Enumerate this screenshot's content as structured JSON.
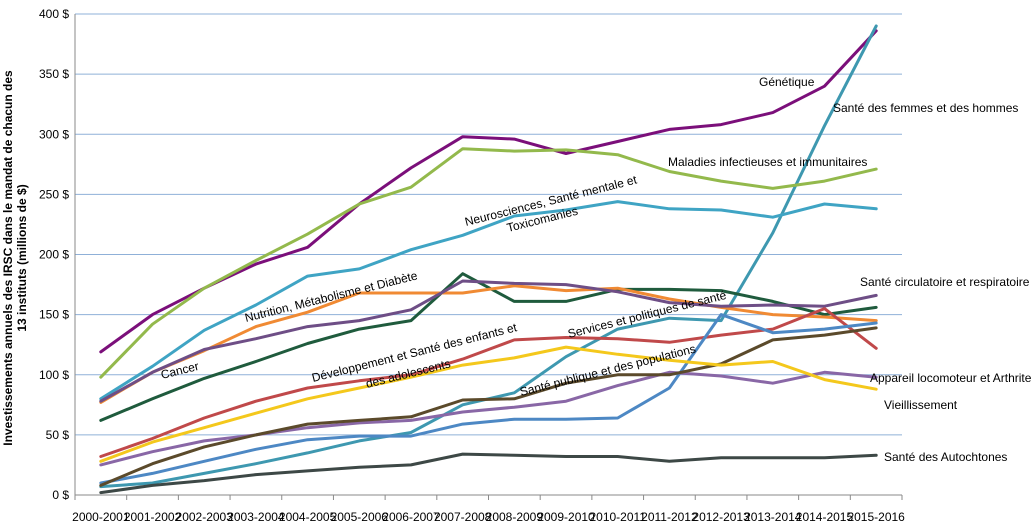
{
  "chart_data": {
    "type": "line",
    "title": "",
    "ylabel": [
      "Investissements annuels des IRSC dans le mandat de chacun des",
      "13 instituts (millions de $)"
    ],
    "xlabel": "",
    "ylim": [
      0,
      400
    ],
    "y_ticks": [
      "0 $",
      "50 $",
      "100 $",
      "150 $",
      "200 $",
      "250 $",
      "300 $",
      "350 $",
      "400 $"
    ],
    "grid": "horizontal",
    "legend": "inline labels",
    "categories": [
      "2000-2001",
      "2001-2002",
      "2002-2003",
      "2003-2004",
      "2004-2005",
      "2005-2006",
      "2006-2007",
      "2007-2008",
      "2008-2009",
      "2009-2010",
      "2010-2011",
      "2011-2012",
      "2012-2013",
      "2013-2014",
      "2014-2015",
      "2015-2016"
    ],
    "series": [
      {
        "name": "Génétique",
        "color": "#7b0f7a",
        "values": [
          119,
          150,
          172,
          192,
          206,
          242,
          272,
          298,
          296,
          284,
          294,
          304,
          308,
          318,
          340,
          386
        ]
      },
      {
        "name": "Santé des femmes et des hommes",
        "color": "#3e98b0",
        "values": [
          7,
          10,
          18,
          26,
          35,
          45,
          52,
          75,
          85,
          115,
          138,
          147,
          145,
          218,
          307,
          390
        ]
      },
      {
        "name": "Maladies infectieuses et immunitaires",
        "color": "#93b94c",
        "values": [
          98,
          142,
          172,
          195,
          217,
          242,
          256,
          288,
          286,
          287,
          283,
          269,
          261,
          255,
          261,
          271
        ]
      },
      {
        "name": "Neurosciences, Santé mentale et Toxicomanies",
        "color": "#3fa4c4",
        "values": [
          80,
          107,
          137,
          158,
          182,
          188,
          204,
          216,
          232,
          237,
          244,
          238,
          237,
          231,
          242,
          238
        ]
      },
      {
        "name": "Santé circulatoire et respiratoire",
        "color": "#1f5b3d",
        "values": [
          62,
          80,
          97,
          111,
          126,
          138,
          145,
          184,
          161,
          161,
          171,
          171,
          170,
          161,
          150,
          156
        ]
      },
      {
        "name": "Nutrition, Métabolisme et Diabète",
        "color": "#f08a33",
        "values": [
          77,
          102,
          120,
          140,
          152,
          168,
          168,
          168,
          174,
          170,
          172,
          163,
          156,
          150,
          148,
          145
        ]
      },
      {
        "name": "Cancer",
        "color": "#6e4e86",
        "values": [
          78,
          102,
          121,
          130,
          140,
          145,
          154,
          178,
          176,
          175,
          169,
          160,
          157,
          158,
          157,
          166
        ]
      },
      {
        "name": "Développement et Santé des enfants et des adolescents",
        "color": "#c0494a",
        "values": [
          32,
          47,
          64,
          78,
          89,
          95,
          100,
          113,
          129,
          131,
          130,
          127,
          133,
          138,
          155,
          122
        ]
      },
      {
        "name": "Services et politiques de santé",
        "color": "#4d88c4",
        "values": [
          10,
          18,
          28,
          38,
          46,
          49,
          49,
          59,
          63,
          63,
          64,
          89,
          150,
          135,
          138,
          143
        ]
      },
      {
        "name": "Appareil locomoteur et Arthrite",
        "color": "#8967a6",
        "values": [
          25,
          36,
          45,
          50,
          56,
          60,
          62,
          69,
          73,
          78,
          91,
          102,
          99,
          93,
          102,
          98
        ]
      },
      {
        "name": "Santé publique et des populations",
        "color": "#5b4a2b",
        "values": [
          8,
          26,
          40,
          50,
          59,
          62,
          65,
          79,
          80,
          93,
          100,
          100,
          109,
          129,
          133,
          139
        ]
      },
      {
        "name": "Vieillissement",
        "color": "#f4c81c",
        "values": [
          28,
          44,
          56,
          68,
          80,
          89,
          98,
          108,
          114,
          123,
          117,
          112,
          108,
          111,
          96,
          88
        ]
      },
      {
        "name": "Santé des Autochtones",
        "color": "#3d4846",
        "values": [
          2,
          8,
          12,
          17,
          20,
          23,
          25,
          34,
          33,
          32,
          32,
          28,
          31,
          31,
          31,
          33
        ]
      }
    ]
  },
  "labels": {
    "genetique": "Génétique",
    "femmes_hommes": "Santé des femmes et des hommes",
    "maladies": "Maladies infectieuses et immunitaires",
    "neuro_1": "Neurosciences, Santé mentale et",
    "neuro_2": "Toxicomanies",
    "nutrition": "Nutrition, Métabolisme et Diabète",
    "cancer": "Cancer",
    "circulatoire": "Santé circulatoire et respiratoire",
    "services": "Services et politiques de santé",
    "developpement_1": "Développement et Santé des enfants et",
    "developpement_2": "des adolescents",
    "sante_publique": "Santé publique et des populations",
    "appareil": "Appareil locomoteur et Arthrite",
    "vieillissement": "Vieillissement",
    "autochtones": "Santé des Autochtones"
  },
  "label_colors": {
    "appareil": "#e8262b",
    "default": "#000000"
  }
}
